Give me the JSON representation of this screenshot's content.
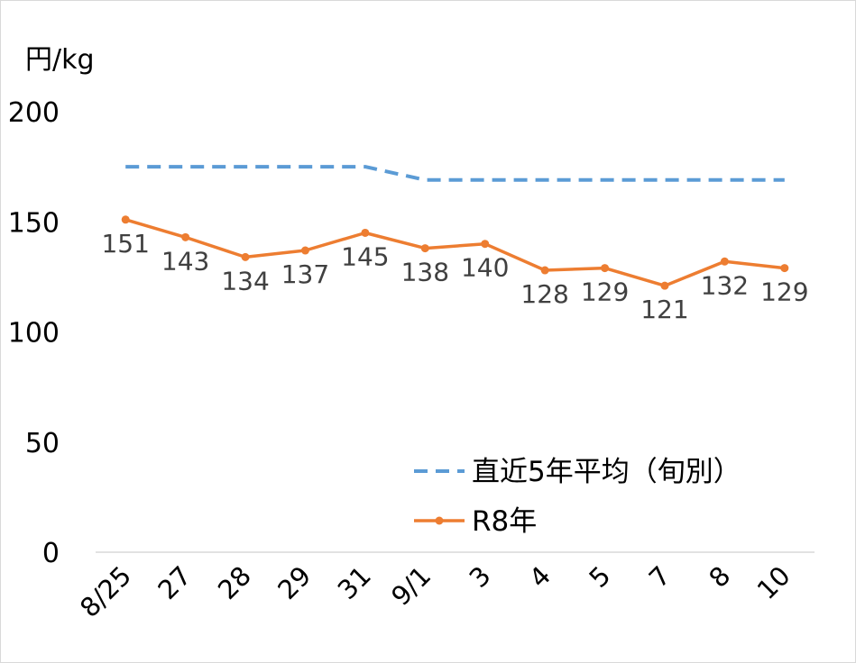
{
  "chart_data": {
    "type": "line",
    "ylabel": "円/kg",
    "ylim": [
      0,
      200
    ],
    "yticks": [
      0,
      50,
      100,
      150,
      200
    ],
    "categories": [
      "8/25",
      "27",
      "28",
      "29",
      "31",
      "9/1",
      "3",
      "4",
      "5",
      "7",
      "8",
      "10"
    ],
    "series": [
      {
        "name": "直近5年平均（旬別）",
        "values": [
          175,
          175,
          175,
          175,
          175,
          169,
          169,
          169,
          169,
          169,
          169,
          169
        ],
        "color": "#5b9bd5",
        "style": "dashed",
        "markers": false,
        "data_labels": false
      },
      {
        "name": "R8年",
        "values": [
          151,
          143,
          134,
          137,
          145,
          138,
          140,
          128,
          129,
          121,
          132,
          129
        ],
        "color": "#ed7d31",
        "style": "solid",
        "markers": true,
        "data_labels": true
      }
    ],
    "legend_position": "bottom-right",
    "grid": false
  }
}
